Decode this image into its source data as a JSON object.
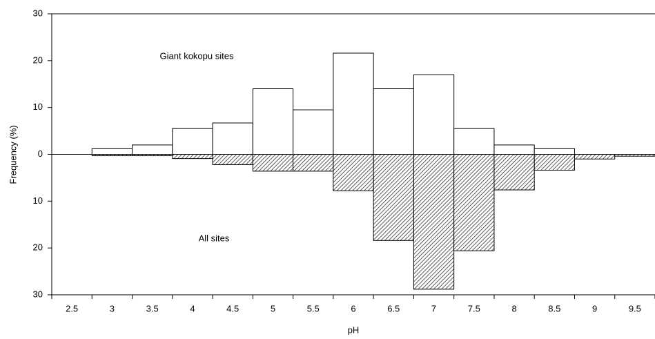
{
  "chart_data": {
    "type": "bar",
    "x_label": "pH",
    "y_label": "Frequency (%)",
    "annotations": [
      "Giant kokopu sites",
      "All sites"
    ],
    "categories": [
      "2.5",
      "3",
      "3.5",
      "4",
      "4.5",
      "5",
      "5.5",
      "6",
      "6.5",
      "7",
      "7.5",
      "8",
      "8.5",
      "9",
      "9.5"
    ],
    "series": [
      {
        "color": "#ffffff",
        "values": [
          0,
          1.2,
          2,
          5.5,
          6.7,
          14,
          9.5,
          21.6,
          14,
          17,
          5.5,
          2,
          1.2,
          0,
          0
        ]
      },
      {
        "color": "#555555",
        "pattern": "hatch",
        "values": [
          0,
          -0.3,
          -0.3,
          -0.9,
          -2.2,
          -3.6,
          -3.6,
          -7.8,
          -18.4,
          -28.8,
          -20.6,
          -7.6,
          -3.4,
          -1,
          -0.4
        ]
      }
    ],
    "ylim": [
      -30,
      30
    ],
    "yticks": [
      {
        "value": -30,
        "label": "30"
      },
      {
        "value": -20,
        "label": "20"
      },
      {
        "value": -10,
        "label": "10"
      },
      0,
      10,
      20,
      30
    ]
  }
}
